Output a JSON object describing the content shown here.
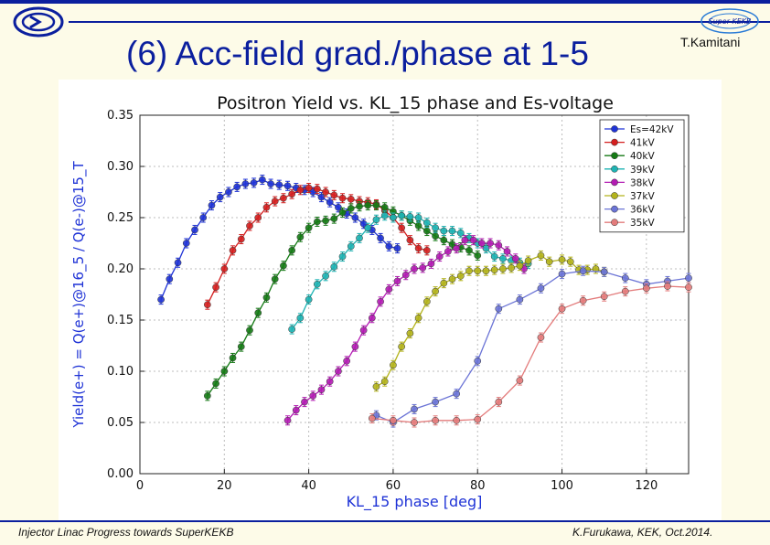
{
  "slide": {
    "title": "(6) Acc-field grad./phase at 1-5",
    "author": "T.Kamitani",
    "footer_left": "Injector Linac Progress towards SuperKEKB",
    "footer_right": "K.Furukawa, KEK, Oct.2014.",
    "logo_right_text": "Super KEKB",
    "colors": {
      "accent": "#0b1f9e",
      "background": "#fdfbe8"
    }
  },
  "chart_data": {
    "type": "line",
    "title": "Positron Yield vs. KL_15 phase and Es-voltage",
    "xlabel": "KL_15 phase [deg]",
    "ylabel": "Yield(e+) = Q(e+)@16_5 / Q(e-)@15_T",
    "xlim": [
      0,
      130
    ],
    "ylim": [
      0.0,
      0.35
    ],
    "xticks": [
      "0",
      "20",
      "40",
      "60",
      "80",
      "100",
      "120"
    ],
    "yticks": [
      "0.00",
      "0.05",
      "0.10",
      "0.15",
      "0.20",
      "0.25",
      "0.30",
      "0.35"
    ],
    "grid": true,
    "legend_position": "top-right",
    "series": [
      {
        "name": "Es=42kV",
        "color": "#1f33d6",
        "x": [
          5,
          7,
          9,
          11,
          13,
          15,
          17,
          19,
          21,
          23,
          25,
          27,
          29,
          31,
          33,
          35,
          37,
          39,
          41,
          43,
          45,
          47,
          49,
          51,
          53,
          55,
          57,
          59,
          61
        ],
        "y": [
          0.17,
          0.19,
          0.206,
          0.225,
          0.238,
          0.25,
          0.262,
          0.27,
          0.275,
          0.28,
          0.283,
          0.284,
          0.287,
          0.283,
          0.282,
          0.281,
          0.279,
          0.277,
          0.275,
          0.27,
          0.265,
          0.26,
          0.254,
          0.25,
          0.244,
          0.238,
          0.23,
          0.222,
          0.22
        ]
      },
      {
        "name": "41kV",
        "color": "#d41f1f",
        "x": [
          16,
          18,
          20,
          22,
          24,
          26,
          28,
          30,
          32,
          34,
          36,
          38,
          40,
          42,
          44,
          46,
          48,
          50,
          52,
          54,
          56,
          58,
          60,
          62,
          64,
          66,
          68
        ],
        "y": [
          0.165,
          0.182,
          0.2,
          0.218,
          0.229,
          0.242,
          0.25,
          0.26,
          0.266,
          0.269,
          0.273,
          0.277,
          0.279,
          0.278,
          0.275,
          0.272,
          0.269,
          0.268,
          0.266,
          0.265,
          0.263,
          0.257,
          0.25,
          0.24,
          0.228,
          0.22,
          0.218
        ]
      },
      {
        "name": "40kV",
        "color": "#157a15",
        "x": [
          16,
          18,
          20,
          22,
          24,
          26,
          28,
          30,
          32,
          34,
          36,
          38,
          40,
          42,
          44,
          46,
          48,
          50,
          52,
          54,
          56,
          58,
          60,
          62,
          64,
          66,
          68,
          70,
          72,
          74,
          76,
          78,
          80
        ],
        "y": [
          0.076,
          0.088,
          0.1,
          0.113,
          0.124,
          0.14,
          0.157,
          0.172,
          0.19,
          0.203,
          0.218,
          0.231,
          0.24,
          0.246,
          0.247,
          0.249,
          0.255,
          0.259,
          0.261,
          0.262,
          0.262,
          0.26,
          0.256,
          0.252,
          0.247,
          0.242,
          0.237,
          0.232,
          0.228,
          0.224,
          0.221,
          0.218,
          0.213
        ]
      },
      {
        "name": "39kV",
        "color": "#1eb3b3",
        "x": [
          36,
          38,
          40,
          42,
          44,
          46,
          48,
          50,
          52,
          54,
          56,
          58,
          60,
          62,
          64,
          66,
          68,
          70,
          72,
          74,
          76,
          78,
          80,
          82,
          84,
          86,
          88,
          90,
          92
        ],
        "y": [
          0.141,
          0.152,
          0.17,
          0.185,
          0.193,
          0.202,
          0.212,
          0.222,
          0.23,
          0.24,
          0.248,
          0.252,
          0.25,
          0.252,
          0.251,
          0.25,
          0.245,
          0.24,
          0.237,
          0.237,
          0.235,
          0.23,
          0.225,
          0.22,
          0.212,
          0.21,
          0.208,
          0.206,
          0.205
        ]
      },
      {
        "name": "38kV",
        "color": "#b31cb3",
        "x": [
          35,
          37,
          39,
          41,
          43,
          45,
          47,
          49,
          51,
          53,
          55,
          57,
          59,
          61,
          63,
          65,
          67,
          69,
          71,
          73,
          75,
          77,
          79,
          81,
          83,
          85,
          87,
          89,
          91
        ],
        "y": [
          0.052,
          0.062,
          0.07,
          0.076,
          0.082,
          0.09,
          0.1,
          0.11,
          0.124,
          0.14,
          0.152,
          0.168,
          0.18,
          0.188,
          0.194,
          0.2,
          0.201,
          0.205,
          0.212,
          0.217,
          0.22,
          0.228,
          0.228,
          0.225,
          0.225,
          0.223,
          0.217,
          0.21,
          0.2
        ]
      },
      {
        "name": "37kV",
        "color": "#b3b31c",
        "x": [
          56,
          58,
          60,
          62,
          64,
          66,
          68,
          70,
          72,
          74,
          76,
          78,
          80,
          82,
          84,
          86,
          88,
          90,
          92,
          95,
          97,
          100,
          102,
          104,
          106,
          108,
          110
        ],
        "y": [
          0.085,
          0.09,
          0.106,
          0.124,
          0.137,
          0.152,
          0.168,
          0.178,
          0.186,
          0.19,
          0.193,
          0.198,
          0.198,
          0.198,
          0.199,
          0.2,
          0.201,
          0.203,
          0.208,
          0.213,
          0.207,
          0.209,
          0.207,
          0.199,
          0.199,
          0.2,
          0.197
        ]
      },
      {
        "name": "36kV",
        "color": "#6b74d6",
        "x": [
          56,
          60,
          65,
          70,
          75,
          80,
          85,
          90,
          95,
          100,
          105,
          110,
          115,
          120,
          125,
          130
        ],
        "y": [
          0.057,
          0.05,
          0.063,
          0.07,
          0.078,
          0.11,
          0.161,
          0.17,
          0.181,
          0.195,
          0.198,
          0.197,
          0.191,
          0.185,
          0.188,
          0.191
        ]
      },
      {
        "name": "35kV",
        "color": "#e37b7b",
        "x": [
          55,
          60,
          65,
          70,
          75,
          80,
          85,
          90,
          95,
          100,
          105,
          110,
          115,
          120,
          125,
          130
        ],
        "y": [
          0.054,
          0.052,
          0.05,
          0.052,
          0.052,
          0.053,
          0.07,
          0.091,
          0.133,
          0.161,
          0.169,
          0.173,
          0.178,
          0.181,
          0.183,
          0.182
        ]
      }
    ]
  }
}
